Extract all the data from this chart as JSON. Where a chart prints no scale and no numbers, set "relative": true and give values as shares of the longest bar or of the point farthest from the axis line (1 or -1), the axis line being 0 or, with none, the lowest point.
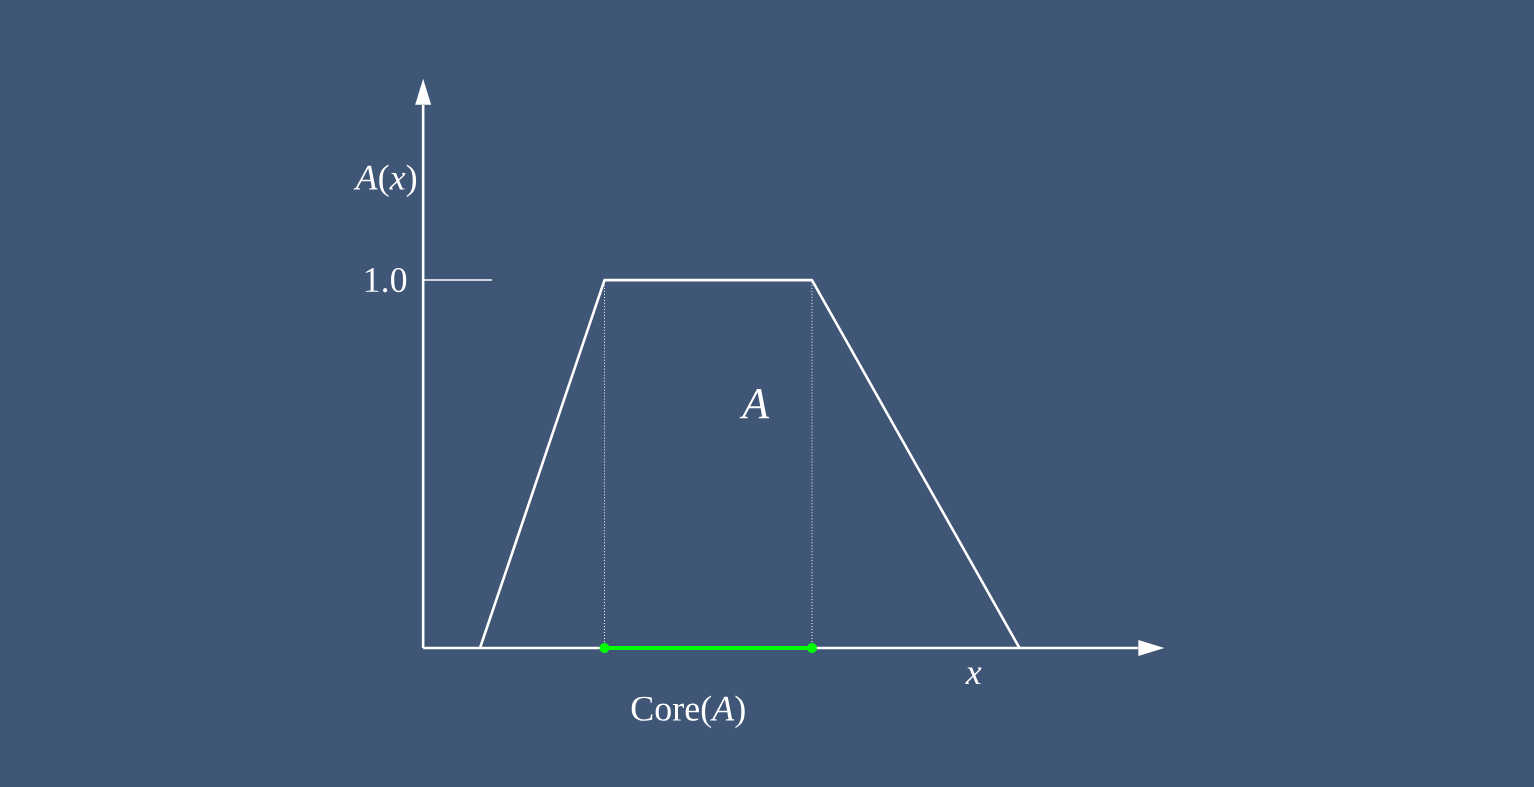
{
  "chart_data": {
    "type": "line",
    "relative": true,
    "xlabel": "x",
    "ylabel": "*A*(*x*)",
    "categories": [
      null,
      null,
      null,
      null,
      null,
      null,
      null,
      null,
      null,
      null,
      null,
      null,
      null,
      null
    ],
    "series": [
      {
        "values": [
          0,
          0.333,
          0.667,
          1,
          1,
          1,
          1,
          1,
          1,
          0.8,
          0.6,
          0.4,
          0.2,
          0
        ],
        "color": "#ffffff",
        "line_style": "solid"
      }
    ],
    "annotations": [
      "1.0",
      "*A*",
      "Core(*A*)"
    ]
  }
}
